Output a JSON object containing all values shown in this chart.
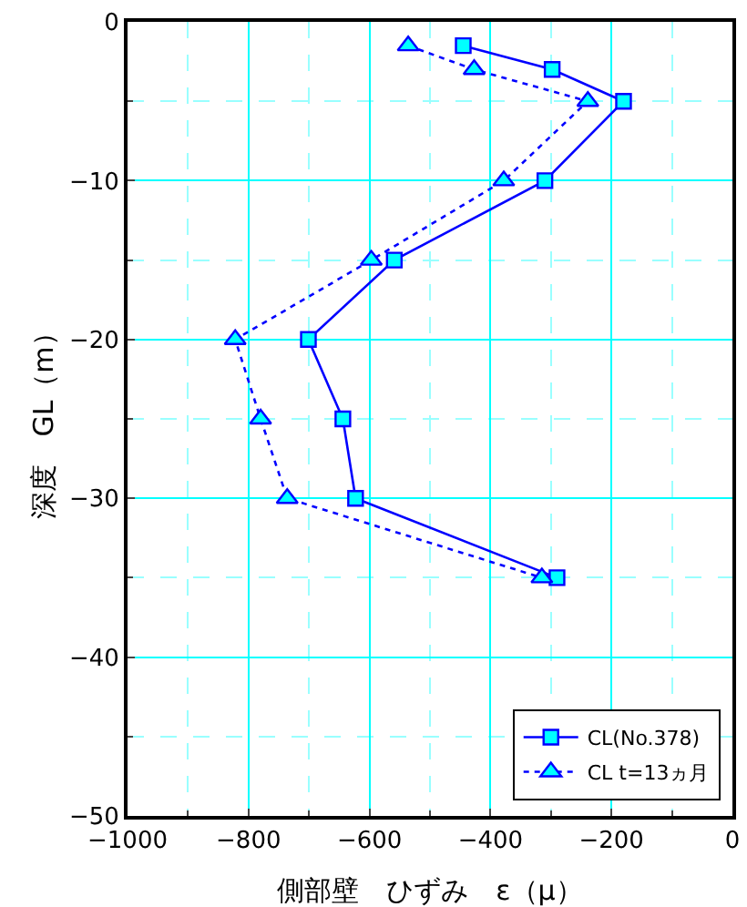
{
  "chart_data": {
    "type": "line",
    "xlabel": "側部壁　ひずみ　ε（μ）",
    "ylabel": "深度　GL（m）",
    "xlim": [
      -1000,
      0
    ],
    "xticks": [
      -1000,
      {
        "value": -900,
        "label": null
      },
      -800,
      {
        "value": -700,
        "label": null
      },
      -600,
      {
        "value": -500,
        "label": null
      },
      -400,
      {
        "value": -300,
        "label": null
      },
      -200,
      {
        "value": -100,
        "label": null
      },
      0
    ],
    "ylim": [
      -50,
      0
    ],
    "yticks": [
      -50,
      {
        "value": -45,
        "label": null
      },
      -40,
      {
        "value": -35,
        "label": null
      },
      -30,
      {
        "value": -25,
        "label": null
      },
      -20,
      {
        "value": -15,
        "label": null
      },
      -10,
      {
        "value": -5,
        "label": null
      },
      0
    ],
    "grid": true,
    "legend": "bottom right",
    "series": [
      {
        "name": "CL(No.378)",
        "color": "#0000ff",
        "marker": "square",
        "line_style": "solid",
        "x": [
          -445,
          -298,
          -180,
          -310,
          -559,
          -701,
          -644,
          -623,
          -290
        ],
        "values": [
          -1.5,
          -3,
          -5,
          -10,
          -15,
          -20,
          -25,
          -30,
          -35
        ]
      },
      {
        "name": "CL t=13ヵ月",
        "color": "#0000ff",
        "marker": "triangle",
        "line_style": "dotted",
        "x": [
          -536,
          -427,
          -239,
          -378,
          -597,
          -822,
          -780,
          -736,
          -315
        ],
        "values": [
          -1.5,
          -3,
          -5,
          -10,
          -15,
          -20,
          -25,
          -30,
          -35
        ]
      }
    ]
  }
}
